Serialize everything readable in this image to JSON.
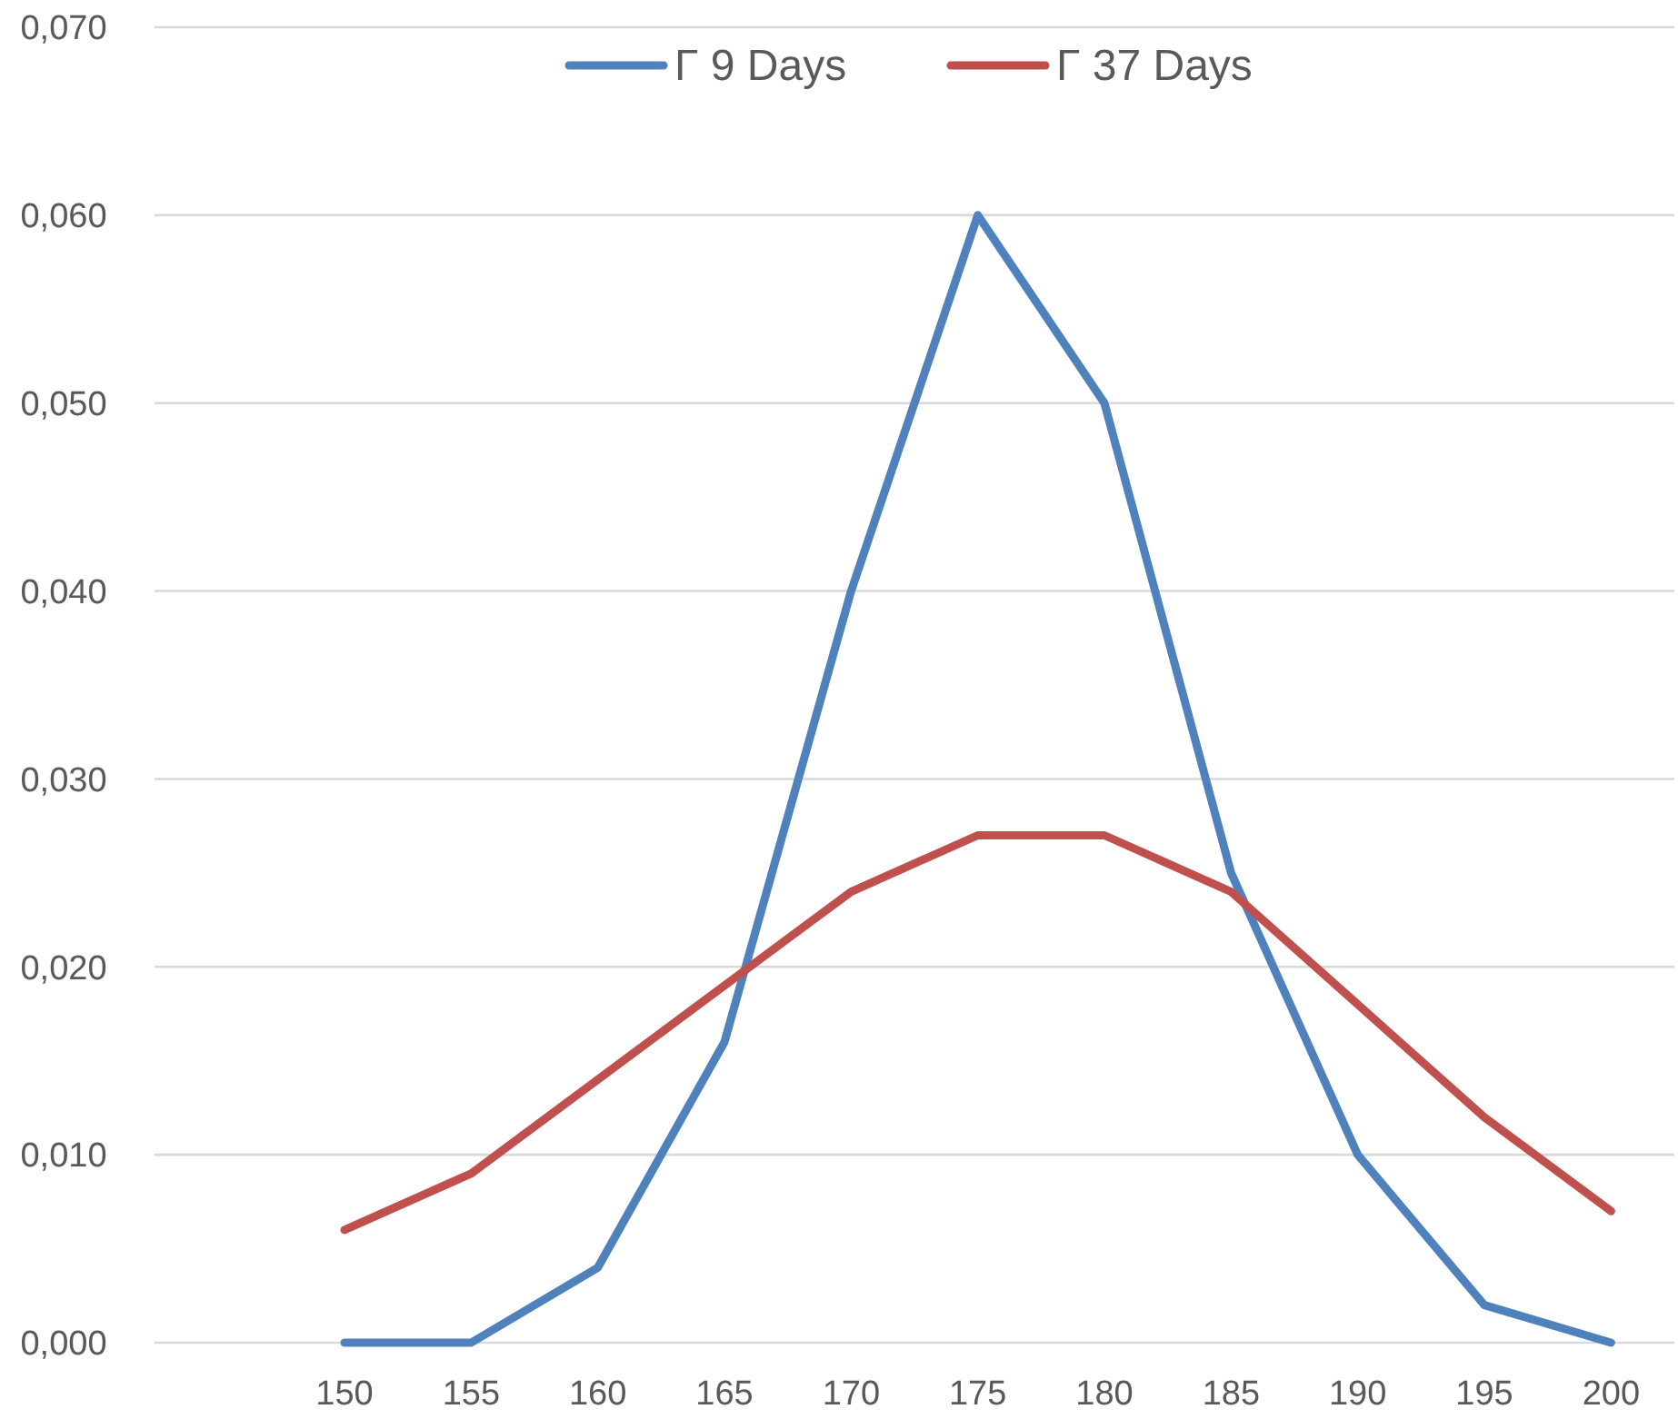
{
  "chart_data": {
    "type": "line",
    "categories": [
      null,
      "150",
      "155",
      "160",
      "165",
      "170",
      "175",
      "180",
      "185",
      "190",
      "195",
      "200"
    ],
    "series": [
      {
        "name": "Γ 9 Days",
        "color": "#4f81bd",
        "values": [
          null,
          0,
          0,
          0.004,
          0.016,
          0.04,
          0.06,
          0.05,
          0.025,
          0.01,
          0.002,
          0
        ]
      },
      {
        "name": "Γ 37 Days",
        "color": "#c0504d",
        "values": [
          null,
          0.006,
          0.009,
          0.014,
          0.019,
          0.024,
          0.027,
          0.027,
          0.024,
          0.018,
          0.012,
          0.007
        ]
      }
    ],
    "ylim": [
      0,
      0.07
    ],
    "yticks": [
      {
        "value": 0,
        "label": "0,000"
      },
      {
        "value": 0.01,
        "label": "0,010"
      },
      {
        "value": 0.02,
        "label": "0,020"
      },
      {
        "value": 0.03,
        "label": "0,030"
      },
      {
        "value": 0.04,
        "label": "0,040"
      },
      {
        "value": 0.05,
        "label": "0,050"
      },
      {
        "value": 0.06,
        "label": "0,060"
      },
      {
        "value": 0.07,
        "label": "0,070"
      }
    ],
    "grid": "y",
    "legend": "top",
    "marker": "none",
    "line_style": "solid"
  }
}
